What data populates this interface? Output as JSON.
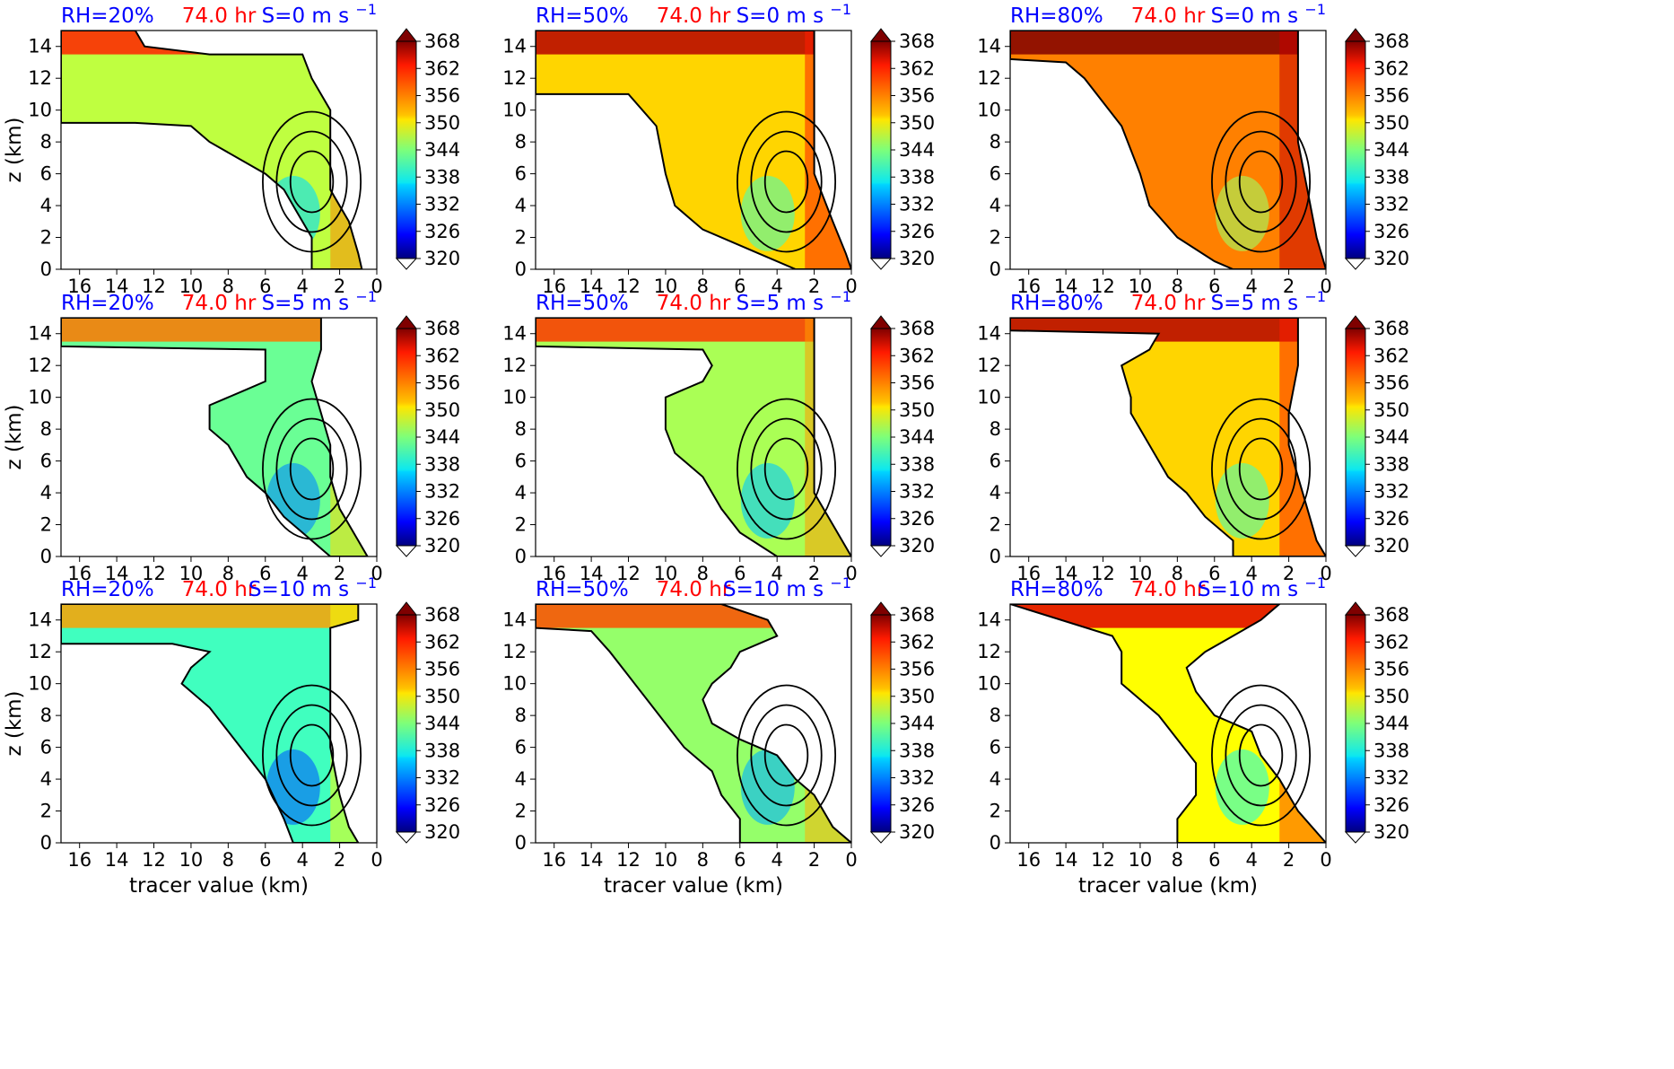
{
  "chart_data": {
    "type": "heatmap",
    "xlabel": "tracer value (km)",
    "ylabel": "z (km)",
    "xlim": [
      17,
      0
    ],
    "ylim": [
      0,
      15
    ],
    "x_ticks": [
      16,
      14,
      12,
      10,
      8,
      6,
      4,
      2,
      0
    ],
    "y_ticks": [
      0,
      2,
      4,
      6,
      8,
      10,
      12,
      14
    ],
    "colorbar": {
      "min": 320,
      "max": 368,
      "ticks": [
        320,
        326,
        332,
        338,
        344,
        350,
        356,
        362,
        368
      ],
      "extend": "both",
      "colormap": "jet"
    },
    "time_label": "74.0 hr",
    "colors": {
      "rh_label": "#0000ff",
      "time_label": "#ff0000",
      "shear_label": "#0000ff"
    },
    "panels": [
      {
        "rh": "RH=20%",
        "shear": "S=0 m s",
        "sup": "−1",
        "row": 0,
        "col": 0,
        "theta_mean": 347,
        "boundary": [
          [
            17,
            15
          ],
          [
            13,
            15
          ],
          [
            12.5,
            14
          ],
          [
            9,
            13.5
          ],
          [
            4,
            13.5
          ],
          [
            3.5,
            12
          ],
          [
            2.5,
            10
          ],
          [
            2.5,
            8
          ],
          [
            2.5,
            5
          ],
          [
            1.5,
            3
          ],
          [
            1,
            1
          ],
          [
            0.8,
            0
          ],
          [
            3.5,
            0
          ],
          [
            3.5,
            2
          ],
          [
            4.5,
            4
          ],
          [
            5,
            5
          ],
          [
            6,
            6
          ],
          [
            9,
            8
          ],
          [
            10,
            9
          ],
          [
            13,
            9.2
          ],
          [
            17,
            9.2
          ]
        ]
      },
      {
        "rh": "RH=50%",
        "shear": "S=0 m s",
        "sup": "−1",
        "row": 0,
        "col": 1,
        "theta_mean": 352,
        "boundary": [
          [
            17,
            15
          ],
          [
            2,
            15
          ],
          [
            2,
            13
          ],
          [
            2,
            10
          ],
          [
            2,
            6
          ],
          [
            1,
            3
          ],
          [
            0.3,
            1
          ],
          [
            0,
            0
          ],
          [
            3,
            0
          ],
          [
            5,
            1
          ],
          [
            8,
            2.5
          ],
          [
            9.5,
            4
          ],
          [
            10,
            6
          ],
          [
            10.5,
            9
          ],
          [
            12,
            11
          ],
          [
            17,
            11
          ]
        ]
      },
      {
        "rh": "RH=80%",
        "shear": "S=0 m s",
        "sup": "−1",
        "row": 0,
        "col": 2,
        "theta_mean": 356,
        "boundary": [
          [
            17,
            15
          ],
          [
            1.5,
            15
          ],
          [
            1.5,
            12
          ],
          [
            1.5,
            8
          ],
          [
            1,
            5
          ],
          [
            0.5,
            2
          ],
          [
            0,
            0
          ],
          [
            5,
            0
          ],
          [
            6,
            0.5
          ],
          [
            8,
            2
          ],
          [
            9.5,
            4
          ],
          [
            10,
            6
          ],
          [
            11,
            9
          ],
          [
            13,
            12
          ],
          [
            14,
            13
          ],
          [
            17,
            13.2
          ]
        ]
      },
      {
        "rh": "RH=20%",
        "shear": "S=5 m s",
        "sup": "−1",
        "row": 1,
        "col": 0,
        "theta_mean": 343,
        "boundary": [
          [
            17,
            15
          ],
          [
            3,
            15
          ],
          [
            3,
            13
          ],
          [
            3.5,
            11
          ],
          [
            3,
            9
          ],
          [
            2.5,
            7
          ],
          [
            2.5,
            5
          ],
          [
            2,
            3
          ],
          [
            1,
            1
          ],
          [
            0.5,
            0
          ],
          [
            2.5,
            0
          ],
          [
            3.5,
            1
          ],
          [
            5,
            2.5
          ],
          [
            6,
            4
          ],
          [
            7,
            5
          ],
          [
            8,
            7
          ],
          [
            9,
            8
          ],
          [
            9,
            9.5
          ],
          [
            7,
            10.5
          ],
          [
            6,
            11
          ],
          [
            6,
            13
          ],
          [
            17,
            13.2
          ]
        ]
      },
      {
        "rh": "RH=50%",
        "shear": "S=5 m s",
        "sup": "−1",
        "row": 1,
        "col": 1,
        "theta_mean": 346,
        "boundary": [
          [
            17,
            15
          ],
          [
            2,
            15
          ],
          [
            2,
            13
          ],
          [
            2,
            10
          ],
          [
            2,
            7
          ],
          [
            2,
            4
          ],
          [
            1,
            2
          ],
          [
            0,
            0
          ],
          [
            4,
            0
          ],
          [
            6,
            1.5
          ],
          [
            7,
            3
          ],
          [
            8,
            5
          ],
          [
            9.5,
            6.5
          ],
          [
            10,
            8
          ],
          [
            10,
            10
          ],
          [
            8,
            11
          ],
          [
            7.5,
            12
          ],
          [
            8,
            13
          ],
          [
            17,
            13.2
          ]
        ]
      },
      {
        "rh": "RH=80%",
        "shear": "S=5 m s",
        "sup": "−1",
        "row": 1,
        "col": 2,
        "theta_mean": 352,
        "boundary": [
          [
            17,
            15
          ],
          [
            1.5,
            15
          ],
          [
            1.5,
            12
          ],
          [
            2,
            9
          ],
          [
            2,
            7
          ],
          [
            1.5,
            5
          ],
          [
            1,
            3
          ],
          [
            0.5,
            1
          ],
          [
            0,
            0
          ],
          [
            5,
            0
          ],
          [
            5,
            1
          ],
          [
            6.5,
            2.5
          ],
          [
            7.5,
            4
          ],
          [
            8.5,
            5
          ],
          [
            9.5,
            7
          ],
          [
            10.5,
            9
          ],
          [
            10.5,
            10
          ],
          [
            11,
            12
          ],
          [
            9.5,
            13
          ],
          [
            9,
            14
          ],
          [
            17,
            14.2
          ]
        ]
      },
      {
        "rh": "RH=20%",
        "shear": "S=10 m s",
        "sup": "−1",
        "row": 2,
        "col": 0,
        "theta_mean": 341,
        "boundary": [
          [
            17,
            15
          ],
          [
            1,
            15
          ],
          [
            1,
            14
          ],
          [
            2.5,
            13.5
          ],
          [
            2.5,
            10
          ],
          [
            2.5,
            6
          ],
          [
            2,
            3
          ],
          [
            1.5,
            1
          ],
          [
            1,
            0
          ],
          [
            4.5,
            0
          ],
          [
            5,
            1.5
          ],
          [
            6,
            4
          ],
          [
            7,
            5.5
          ],
          [
            8,
            7
          ],
          [
            9,
            8.5
          ],
          [
            10.5,
            10
          ],
          [
            10,
            11
          ],
          [
            9,
            12
          ],
          [
            11,
            12.5
          ],
          [
            17,
            12.5
          ]
        ]
      },
      {
        "rh": "RH=50%",
        "shear": "S=10 m s",
        "sup": "−1",
        "row": 2,
        "col": 1,
        "theta_mean": 345,
        "boundary": [
          [
            17,
            15
          ],
          [
            7,
            15
          ],
          [
            4.5,
            14
          ],
          [
            4,
            13
          ],
          [
            6,
            12
          ],
          [
            6.5,
            11
          ],
          [
            7.5,
            10
          ],
          [
            8,
            9
          ],
          [
            7.5,
            7.5
          ],
          [
            6,
            6.5
          ],
          [
            4,
            5.5
          ],
          [
            3,
            4
          ],
          [
            2,
            3
          ],
          [
            1,
            1
          ],
          [
            0,
            0
          ],
          [
            6,
            0
          ],
          [
            6,
            1.5
          ],
          [
            7,
            3
          ],
          [
            7.5,
            4.5
          ],
          [
            9,
            6
          ],
          [
            10,
            7.5
          ],
          [
            11,
            9
          ],
          [
            12,
            10.5
          ],
          [
            13,
            12
          ],
          [
            14,
            13.3
          ],
          [
            17,
            13.5
          ]
        ]
      },
      {
        "rh": "RH=80%",
        "shear": "S=10 m s",
        "sup": "−1",
        "row": 2,
        "col": 2,
        "theta_mean": 350,
        "boundary": [
          [
            17,
            15
          ],
          [
            2.5,
            15
          ],
          [
            3.5,
            14
          ],
          [
            5,
            13
          ],
          [
            6.5,
            12
          ],
          [
            7.5,
            11
          ],
          [
            7,
            9.5
          ],
          [
            6,
            8
          ],
          [
            4,
            7
          ],
          [
            3.5,
            5.5
          ],
          [
            2.5,
            4
          ],
          [
            1.5,
            2
          ],
          [
            0,
            0
          ],
          [
            8,
            0
          ],
          [
            8,
            1.5
          ],
          [
            7,
            3
          ],
          [
            7,
            5
          ],
          [
            8,
            6.5
          ],
          [
            9,
            8
          ],
          [
            10,
            9
          ],
          [
            11,
            10
          ],
          [
            11,
            12
          ],
          [
            11.5,
            13
          ],
          [
            17,
            15
          ]
        ]
      }
    ]
  }
}
